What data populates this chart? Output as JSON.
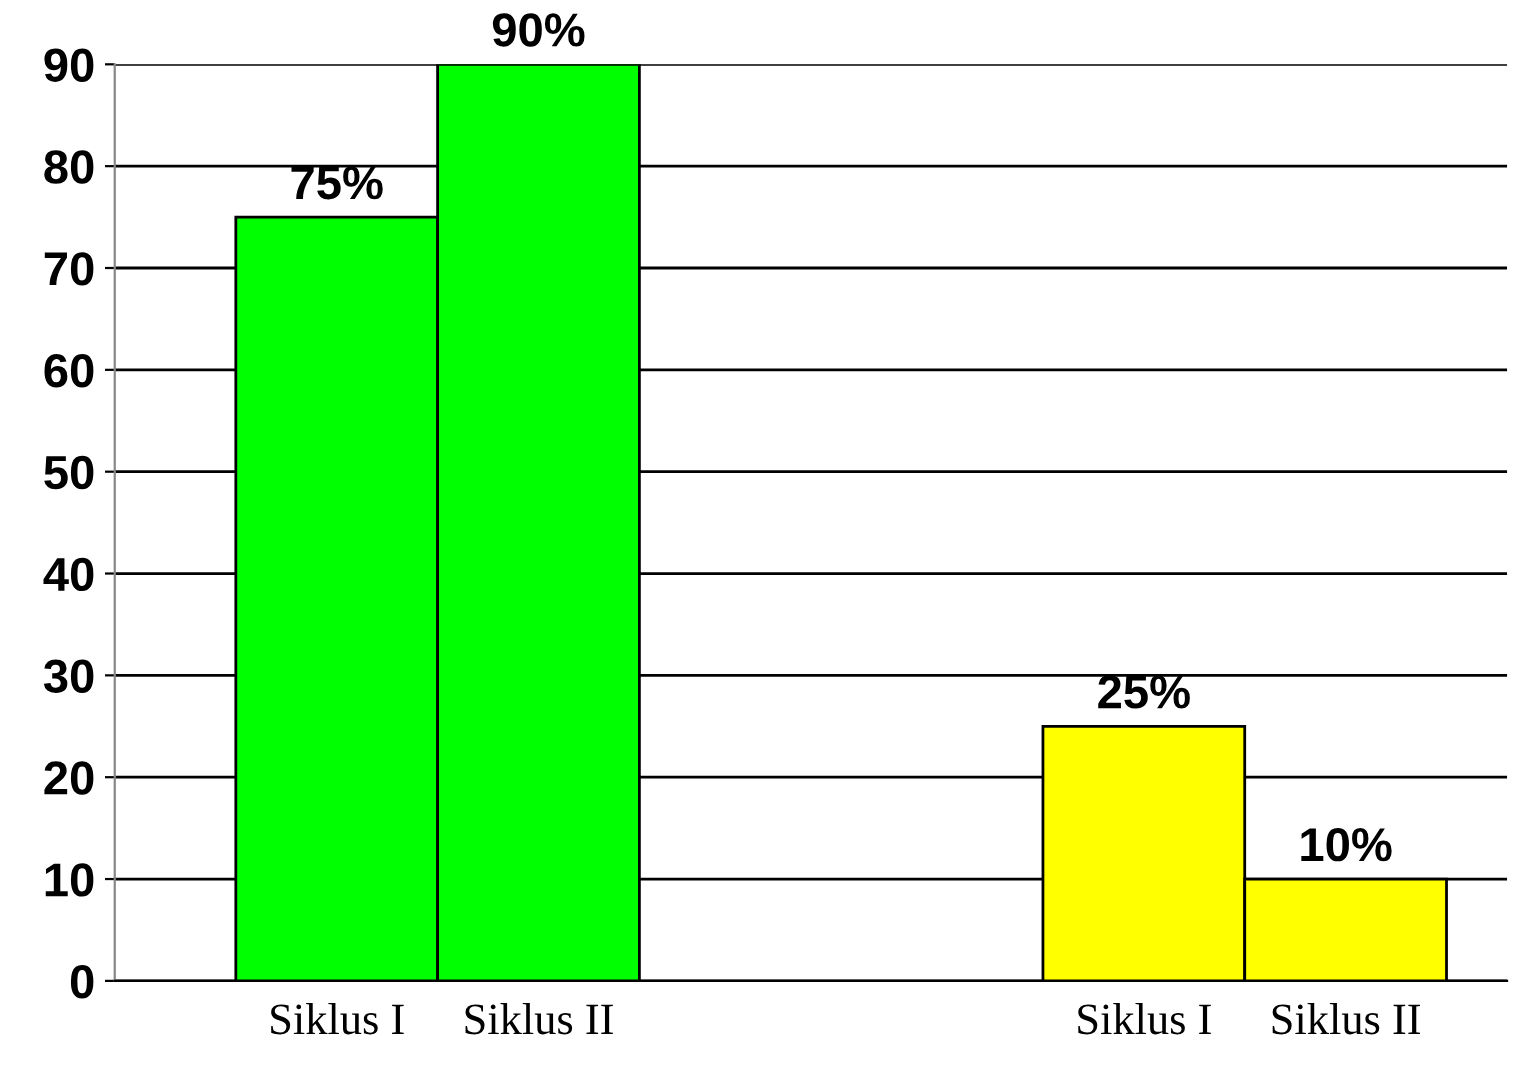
{
  "chart_data": {
    "type": "bar",
    "categories": [
      "Siklus I",
      "Siklus II",
      null,
      null,
      "Siklus I",
      "Siklus II"
    ],
    "values": [
      75,
      90,
      null,
      null,
      25,
      10
    ],
    "colors": [
      "#00ff00",
      "#00ff00",
      null,
      null,
      "#ffff00",
      "#ffff00"
    ],
    "value_labels": [
      "75%",
      "90%",
      null,
      null,
      "25%",
      "10%"
    ],
    "ylim": [
      0,
      90
    ],
    "yticks": [
      0,
      10,
      20,
      30,
      40,
      50,
      60,
      70,
      80,
      90
    ],
    "grid": "y",
    "legend": false
  }
}
